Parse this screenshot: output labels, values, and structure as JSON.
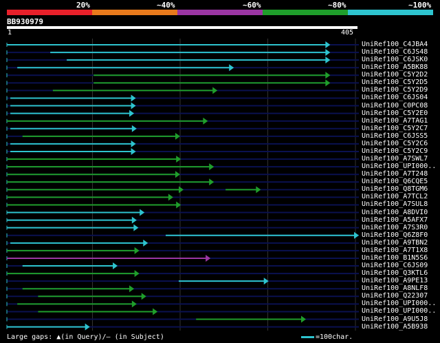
{
  "legend": [
    {
      "label": "20%",
      "color": "#e8202a"
    },
    {
      "label": "~40%",
      "color": "#e87a1c"
    },
    {
      "label": "~60%",
      "color": "#9b36a3"
    },
    {
      "label": "~80%",
      "color": "#1f9e2b"
    },
    {
      "label": "~100%",
      "color": "#2ec4cf"
    }
  ],
  "query": {
    "name": "BB930979",
    "start": "1",
    "end": "405"
  },
  "colors": {
    "cyan": "#2ec4cf",
    "green": "#1f9e2b",
    "magenta": "#9b36a3",
    "navy": "#0a1150",
    "grid": "#333333"
  },
  "hits": [
    {
      "label": "UniRef100_C4JBA4",
      "start": 1,
      "end": 372,
      "color": "cyan"
    },
    {
      "label": "UniRef100_C6JS48",
      "start": 51,
      "end": 372,
      "color": "cyan"
    },
    {
      "label": "UniRef100_C6JSK0",
      "start": 70,
      "end": 372,
      "color": "cyan"
    },
    {
      "label": "UniRef100_A5BK88",
      "start": 13,
      "end": 261,
      "color": "cyan"
    },
    {
      "label": "UniRef100_C5Y2D2",
      "start": 101,
      "end": 372,
      "color": "green"
    },
    {
      "label": "UniRef100_C5Y2D5",
      "start": 101,
      "end": 372,
      "color": "green"
    },
    {
      "label": "UniRef100_C5Y2D9",
      "start": 54,
      "end": 242,
      "color": "green"
    },
    {
      "label": "UniRef100_C6JS04",
      "start": 5,
      "end": 148,
      "color": "cyan"
    },
    {
      "label": "UniRef100_C0PC08",
      "start": 5,
      "end": 148,
      "color": "cyan"
    },
    {
      "label": "UniRef100_C5Y2E0",
      "start": 5,
      "end": 146,
      "color": "cyan"
    },
    {
      "label": "UniRef100_A7TAG1",
      "start": 1,
      "end": 231,
      "color": "green"
    },
    {
      "label": "UniRef100_C5Y2C7",
      "start": 5,
      "end": 149,
      "color": "cyan"
    },
    {
      "label": "UniRef100_C6JSS5",
      "start": 19,
      "end": 199,
      "color": "green"
    },
    {
      "label": "UniRef100_C5Y2C6",
      "start": 5,
      "end": 148,
      "color": "cyan"
    },
    {
      "label": "UniRef100_C5Y2C9",
      "start": 5,
      "end": 148,
      "color": "cyan"
    },
    {
      "label": "UniRef100_A7SWL7",
      "start": 1,
      "end": 200,
      "color": "green"
    },
    {
      "label": "UniRef100_UPI000..",
      "start": 1,
      "end": 238,
      "color": "green"
    },
    {
      "label": "UniRef100_A7T248",
      "start": 1,
      "end": 199,
      "color": "green"
    },
    {
      "label": "UniRef100_Q6CQE5",
      "start": 1,
      "end": 238,
      "color": "green"
    },
    {
      "label": "UniRef100_Q8TGM6",
      "start": 1,
      "end": 203,
      "color": "green",
      "extra": [
        253,
        292
      ]
    },
    {
      "label": "UniRef100_A7TCL2",
      "start": 1,
      "end": 191,
      "color": "green"
    },
    {
      "label": "UniRef100_A7SUL8",
      "start": 1,
      "end": 200,
      "color": "green"
    },
    {
      "label": "UniRef100_A8DVI0",
      "start": 1,
      "end": 158,
      "color": "cyan"
    },
    {
      "label": "UniRef100_A5AFX7",
      "start": 1,
      "end": 149,
      "color": "cyan"
    },
    {
      "label": "UniRef100_A7S3R0",
      "start": 1,
      "end": 151,
      "color": "cyan"
    },
    {
      "label": "UniRef100_Q6Z8F0",
      "start": 184,
      "end": 405,
      "color": "cyan"
    },
    {
      "label": "UniRef100_A9TBN2",
      "start": 5,
      "end": 162,
      "color": "cyan"
    },
    {
      "label": "UniRef100_A7T1X8",
      "start": 1,
      "end": 152,
      "color": "green"
    },
    {
      "label": "UniRef100_B1N5S6",
      "start": 1,
      "end": 234,
      "color": "magenta"
    },
    {
      "label": "UniRef100_C6JS09",
      "start": 19,
      "end": 127,
      "color": "cyan"
    },
    {
      "label": "UniRef100_Q3KTL6",
      "start": 1,
      "end": 152,
      "color": "green"
    },
    {
      "label": "UniRef100_A9PE13",
      "start": 199,
      "end": 301,
      "color": "cyan"
    },
    {
      "label": "UniRef100_A8NLF8",
      "start": 19,
      "end": 146,
      "color": "green"
    },
    {
      "label": "UniRef100_Q22307",
      "start": 37,
      "end": 160,
      "color": "green"
    },
    {
      "label": "UniRef100_UPI000..",
      "start": 13,
      "end": 149,
      "color": "green"
    },
    {
      "label": "UniRef100_UPI000..",
      "start": 37,
      "end": 173,
      "color": "green"
    },
    {
      "label": "UniRef100_A9U5J8",
      "start": 219,
      "end": 344,
      "color": "green"
    },
    {
      "label": "UniRef100_A5B938",
      "start": 1,
      "end": 95,
      "color": "cyan"
    }
  ],
  "footer": {
    "gaps_label": "Large gaps:",
    "query_gap": "(in Query)/",
    "subject_gap": "(in Subject)",
    "scale_label": "=100char."
  }
}
